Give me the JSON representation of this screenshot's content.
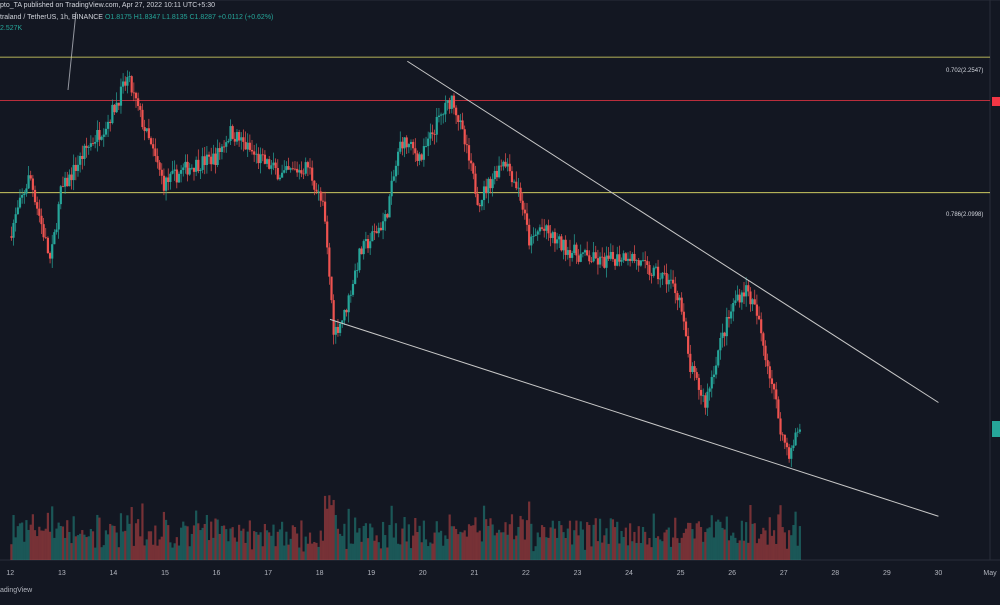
{
  "header": {
    "published": "pto_TA published on TradingView.com, Apr 27, 2022 10:11 UTC+5:30",
    "symbol": "traland / TetherUS, 1h, BINANCE",
    "ohlc": {
      "o": "O1.8175",
      "h": "H1.8347",
      "l": "L1.8135",
      "c": "C1.8287",
      "chg": "+0.0112 (+0.62%)"
    },
    "volume": "2.527K"
  },
  "footer": {
    "brand": "adingView"
  },
  "colors": {
    "bg": "#131722",
    "up": "#26a69a",
    "down": "#ef5350",
    "fib": "#e8e46a",
    "resistance": "#f23645",
    "trend": "#c8c8c8"
  },
  "chart_data": {
    "type": "candlestick",
    "fib_levels": [
      {
        "label": "0.702(2.2547)",
        "value": 2.2547
      },
      {
        "label": "0.786(2.0998)",
        "value": 2.0998
      }
    ],
    "resistance_level": 2.205,
    "x_ticks": [
      "12",
      "13",
      "14",
      "15",
      "16",
      "17",
      "18",
      "19",
      "20",
      "21",
      "22",
      "23",
      "24",
      "25",
      "26",
      "27",
      "28",
      "29",
      "30",
      "May"
    ],
    "price_anchors": [
      {
        "day": 12.0,
        "price": 2.05
      },
      {
        "day": 12.4,
        "price": 2.12
      },
      {
        "day": 12.8,
        "price": 2.02
      },
      {
        "day": 13.0,
        "price": 2.1
      },
      {
        "day": 13.5,
        "price": 2.15
      },
      {
        "day": 13.9,
        "price": 2.18
      },
      {
        "day": 14.3,
        "price": 2.23
      },
      {
        "day": 14.7,
        "price": 2.16
      },
      {
        "day": 15.0,
        "price": 2.11
      },
      {
        "day": 15.5,
        "price": 2.13
      },
      {
        "day": 16.0,
        "price": 2.14
      },
      {
        "day": 16.3,
        "price": 2.17
      },
      {
        "day": 16.8,
        "price": 2.14
      },
      {
        "day": 17.3,
        "price": 2.12
      },
      {
        "day": 17.8,
        "price": 2.13
      },
      {
        "day": 18.1,
        "price": 2.08
      },
      {
        "day": 18.3,
        "price": 1.94
      },
      {
        "day": 18.5,
        "price": 1.96
      },
      {
        "day": 18.8,
        "price": 2.03
      },
      {
        "day": 19.3,
        "price": 2.07
      },
      {
        "day": 19.6,
        "price": 2.16
      },
      {
        "day": 20.0,
        "price": 2.14
      },
      {
        "day": 20.3,
        "price": 2.18
      },
      {
        "day": 20.6,
        "price": 2.21
      },
      {
        "day": 20.9,
        "price": 2.14
      },
      {
        "day": 21.1,
        "price": 2.09
      },
      {
        "day": 21.4,
        "price": 2.12
      },
      {
        "day": 21.6,
        "price": 2.14
      },
      {
        "day": 21.9,
        "price": 2.1
      },
      {
        "day": 22.1,
        "price": 2.04
      },
      {
        "day": 22.3,
        "price": 2.06
      },
      {
        "day": 22.7,
        "price": 2.04
      },
      {
        "day": 23.0,
        "price": 2.03
      },
      {
        "day": 23.5,
        "price": 2.02
      },
      {
        "day": 24.0,
        "price": 2.03
      },
      {
        "day": 24.4,
        "price": 2.01
      },
      {
        "day": 24.8,
        "price": 2.0
      },
      {
        "day": 25.0,
        "price": 1.98
      },
      {
        "day": 25.2,
        "price": 1.9
      },
      {
        "day": 25.5,
        "price": 1.86
      },
      {
        "day": 25.8,
        "price": 1.93
      },
      {
        "day": 26.1,
        "price": 1.98
      },
      {
        "day": 26.3,
        "price": 1.99
      },
      {
        "day": 26.5,
        "price": 1.96
      },
      {
        "day": 26.8,
        "price": 1.88
      },
      {
        "day": 27.0,
        "price": 1.82
      },
      {
        "day": 27.15,
        "price": 1.8
      },
      {
        "day": 27.3,
        "price": 1.83
      }
    ],
    "trendlines": [
      {
        "name": "upper",
        "from": {
          "day": 19.7,
          "price": 2.25
        },
        "to": {
          "day": 30.0,
          "price": 1.86
        }
      },
      {
        "name": "lower",
        "from": {
          "day": 18.2,
          "price": 1.955
        },
        "to": {
          "day": 30.0,
          "price": 1.73
        }
      }
    ],
    "ylim": [
      1.68,
      2.32
    ],
    "xlim": [
      11.8,
      31.0
    ]
  }
}
